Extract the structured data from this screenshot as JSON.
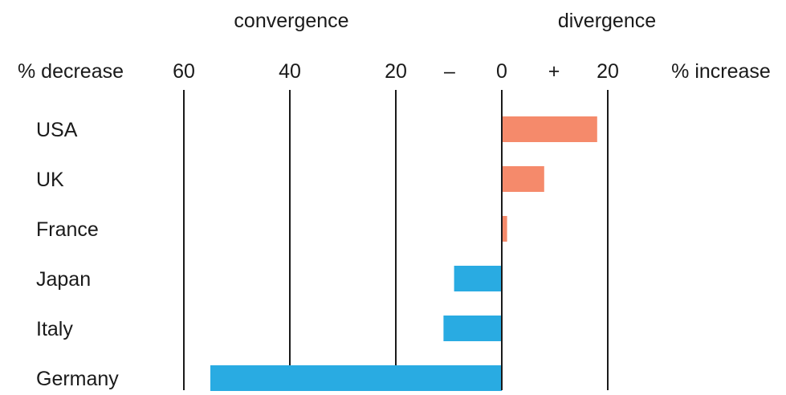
{
  "chart_data": {
    "type": "bar",
    "orientation": "horizontal",
    "categories": [
      "USA",
      "UK",
      "France",
      "Japan",
      "Italy",
      "Germany"
    ],
    "values": [
      18,
      8,
      1,
      -9,
      -11,
      -55
    ],
    "xlim": [
      -60,
      20
    ],
    "x_ticks": [
      -60,
      -40,
      -20,
      0,
      20
    ],
    "x_tick_labels": [
      "60",
      "40",
      "20",
      "0",
      "20"
    ],
    "sign_labels": [
      "–",
      "+"
    ],
    "left_axis_label": "% decrease",
    "right_axis_label": "% increase",
    "left_region_label": "convergence",
    "right_region_label": "divergence",
    "grid": true,
    "colors": {
      "positive": "#f58a6b",
      "negative": "#29abe2",
      "gridline": "#1a1a1a"
    }
  }
}
